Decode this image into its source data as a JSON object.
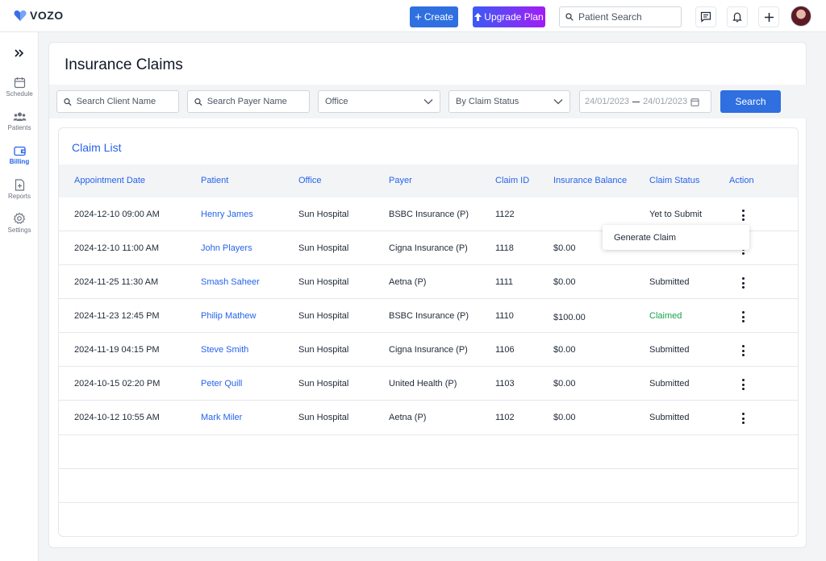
{
  "app": {
    "name": "VOZO"
  },
  "topbar": {
    "create_label": "Create",
    "upgrade_label": "Upgrade Plan",
    "search_placeholder": "Patient Search"
  },
  "sidebar": {
    "items": [
      {
        "label": "Schedule",
        "icon": "calendar-icon"
      },
      {
        "label": "Patients",
        "icon": "people-icon"
      },
      {
        "label": "Billing",
        "icon": "wallet-icon",
        "active": true
      },
      {
        "label": "Reports",
        "icon": "report-file-icon"
      },
      {
        "label": "Settings",
        "icon": "gear-icon"
      }
    ]
  },
  "page": {
    "title": "Insurance Claims"
  },
  "filters": {
    "client_placeholder": "Search Client Name",
    "payer_placeholder": "Search Payer Name",
    "office_value": "Office",
    "status_value": "By Claim Status",
    "date_from": "24/01/2023",
    "date_to": "24/01/2023",
    "search_label": "Search"
  },
  "claim_list": {
    "title": "Claim List",
    "columns": [
      "Appointment Date",
      "Patient",
      "Office",
      "Payer",
      "Claim ID",
      "Insurance Balance",
      "Claim Status",
      "Action"
    ],
    "rows": [
      {
        "date": "2024-12-10 09:00 AM",
        "patient": "Henry James",
        "office": "Sun Hospital",
        "payer": "BSBC Insurance (P)",
        "claim_id": "1122",
        "balance": "",
        "status": "Yet to Submit"
      },
      {
        "date": "2024-12-10 11:00 AM",
        "patient": "John Players",
        "office": "Sun Hospital",
        "payer": "Cigna Insurance (P)",
        "claim_id": "1118",
        "balance": "$0.00",
        "status": ""
      },
      {
        "date": "2024-11-25 11:30 AM",
        "patient": "Smash Saheer",
        "office": "Sun Hospital",
        "payer": "Aetna (P)",
        "claim_id": "1111",
        "balance": "$0.00",
        "status": "Submitted"
      },
      {
        "date": "2024-11-23 12:45 PM",
        "patient": "Philip Mathew",
        "office": "Sun Hospital",
        "payer": "BSBC Insurance (P)",
        "claim_id": "1110",
        "balance": "$100.00",
        "status": "Claimed"
      },
      {
        "date": "2024-11-19 04:15 PM",
        "patient": "Steve Smith",
        "office": "Sun Hospital",
        "payer": "Cigna Insurance (P)",
        "claim_id": "1106",
        "balance": "$0.00",
        "status": "Submitted"
      },
      {
        "date": "2024-10-15 02:20 PM",
        "patient": "Peter Quill",
        "office": "Sun Hospital",
        "payer": "United Health (P)",
        "claim_id": "1103",
        "balance": "$0.00",
        "status": "Submitted"
      },
      {
        "date": "2024-10-12 10:55 AM",
        "patient": "Mark Miler",
        "office": "Sun Hospital",
        "payer": "Aetna (P)",
        "claim_id": "1102",
        "balance": "$0.00",
        "status": "Submitted"
      }
    ]
  },
  "action_menu": {
    "item": "Generate Claim"
  },
  "colors": {
    "accent": "#2f6fe0",
    "claimed": "#16a34a"
  }
}
